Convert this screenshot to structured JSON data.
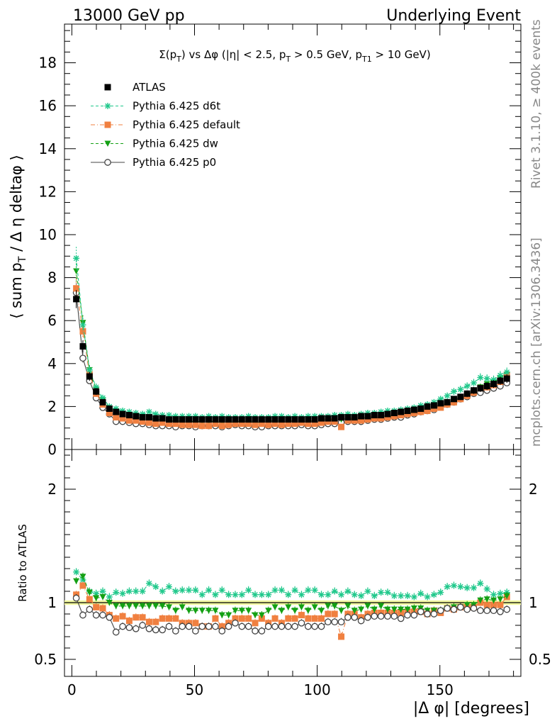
{
  "header": {
    "energy": "13000 GeV pp",
    "analysis": "Underlying Event"
  },
  "side_labels": {
    "rivet": "Rivet 3.1.10, ≥ 400k events",
    "mcplots": "mcplots.cern.ch [arXiv:1306.3436]"
  },
  "colors": {
    "atlas": "#000000",
    "d6t": "#1fc88b",
    "default": "#f08040",
    "dw": "#14a014",
    "p0": "#444444",
    "band": "#f2f8a0"
  },
  "chart_data": [
    {
      "type": "scatter",
      "panel": "main",
      "title": "Σ(p_T) vs Δφ (|η| < 2.5, p_T > 0.5 GeV, p_T1 > 10 GeV)",
      "ylabel": "⟨ sum p_T / Δ η deltaφ ⟩",
      "xlabel": "",
      "xlim": [
        -3,
        183
      ],
      "ylim": [
        0,
        19.8
      ],
      "y_ticks": [
        0,
        2,
        4,
        6,
        8,
        10,
        12,
        14,
        16,
        18
      ],
      "x": [
        1.8,
        4.5,
        7.2,
        9.9,
        12.6,
        15.3,
        18.0,
        20.7,
        23.4,
        26.1,
        28.8,
        31.5,
        34.2,
        36.9,
        39.6,
        42.3,
        45.0,
        47.7,
        50.4,
        53.1,
        55.8,
        58.5,
        61.2,
        63.9,
        66.6,
        69.3,
        72.0,
        74.7,
        77.4,
        80.1,
        82.8,
        85.5,
        88.2,
        90.9,
        93.6,
        96.3,
        99.0,
        101.7,
        104.4,
        107.1,
        109.8,
        112.5,
        115.2,
        117.9,
        120.6,
        123.3,
        126.0,
        128.7,
        131.4,
        134.1,
        136.8,
        139.5,
        142.2,
        144.9,
        147.6,
        150.3,
        153.0,
        155.7,
        158.4,
        161.1,
        163.8,
        166.5,
        169.2,
        171.9,
        174.6,
        177.3
      ],
      "legend_position": "top-left",
      "series": [
        {
          "name": "ATLAS",
          "key": "atlas",
          "marker": "square",
          "line": "none",
          "values": [
            7.0,
            4.8,
            3.4,
            2.7,
            2.2,
            1.9,
            1.75,
            1.65,
            1.6,
            1.55,
            1.5,
            1.5,
            1.45,
            1.45,
            1.4,
            1.4,
            1.4,
            1.4,
            1.4,
            1.4,
            1.4,
            1.4,
            1.4,
            1.4,
            1.4,
            1.4,
            1.4,
            1.4,
            1.4,
            1.4,
            1.4,
            1.4,
            1.4,
            1.4,
            1.4,
            1.4,
            1.4,
            1.45,
            1.45,
            1.45,
            1.5,
            1.5,
            1.5,
            1.55,
            1.55,
            1.6,
            1.6,
            1.65,
            1.7,
            1.75,
            1.8,
            1.85,
            1.9,
            2.0,
            2.05,
            2.15,
            2.2,
            2.35,
            2.45,
            2.6,
            2.75,
            2.85,
            2.95,
            3.05,
            3.2,
            3.3
          ]
        },
        {
          "name": "Pythia 6.425 d6t",
          "key": "d6t",
          "marker": "star",
          "line": "dashed",
          "values": [
            8.9,
            5.8,
            3.7,
            2.9,
            2.4,
            2.0,
            1.9,
            1.8,
            1.75,
            1.7,
            1.65,
            1.75,
            1.65,
            1.6,
            1.6,
            1.55,
            1.55,
            1.55,
            1.55,
            1.5,
            1.55,
            1.5,
            1.55,
            1.5,
            1.5,
            1.5,
            1.55,
            1.5,
            1.5,
            1.5,
            1.55,
            1.55,
            1.5,
            1.55,
            1.5,
            1.55,
            1.55,
            1.55,
            1.55,
            1.6,
            1.6,
            1.65,
            1.6,
            1.65,
            1.7,
            1.7,
            1.75,
            1.8,
            1.8,
            1.85,
            1.9,
            1.95,
            2.05,
            2.1,
            2.2,
            2.35,
            2.5,
            2.7,
            2.8,
            2.95,
            3.1,
            3.35,
            3.3,
            3.25,
            3.45,
            3.6
          ]
        },
        {
          "name": "Pythia 6.425 default",
          "key": "default",
          "marker": "square",
          "line": "dashdot",
          "values": [
            7.5,
            5.5,
            3.5,
            2.6,
            2.1,
            1.7,
            1.5,
            1.45,
            1.35,
            1.35,
            1.3,
            1.25,
            1.2,
            1.25,
            1.2,
            1.2,
            1.15,
            1.15,
            1.15,
            1.1,
            1.1,
            1.2,
            1.1,
            1.15,
            1.2,
            1.2,
            1.2,
            1.15,
            1.2,
            1.15,
            1.2,
            1.15,
            1.2,
            1.2,
            1.25,
            1.2,
            1.2,
            1.25,
            1.3,
            1.3,
            1.05,
            1.35,
            1.35,
            1.35,
            1.4,
            1.45,
            1.45,
            1.5,
            1.55,
            1.6,
            1.65,
            1.7,
            1.75,
            1.8,
            1.9,
            1.95,
            2.1,
            2.2,
            2.35,
            2.5,
            2.65,
            2.85,
            2.9,
            3.0,
            3.15,
            3.45
          ]
        },
        {
          "name": "Pythia 6.425 dw",
          "key": "dw",
          "marker": "triangle-down",
          "line": "dashed",
          "values": [
            8.3,
            5.9,
            3.7,
            2.8,
            2.3,
            1.9,
            1.7,
            1.6,
            1.55,
            1.5,
            1.45,
            1.45,
            1.4,
            1.4,
            1.35,
            1.3,
            1.35,
            1.3,
            1.3,
            1.3,
            1.3,
            1.3,
            1.25,
            1.25,
            1.3,
            1.3,
            1.3,
            1.25,
            1.25,
            1.3,
            1.35,
            1.3,
            1.35,
            1.3,
            1.35,
            1.3,
            1.35,
            1.35,
            1.4,
            1.4,
            1.4,
            1.45,
            1.4,
            1.45,
            1.5,
            1.5,
            1.55,
            1.55,
            1.6,
            1.65,
            1.7,
            1.75,
            1.8,
            1.85,
            1.9,
            2.0,
            2.1,
            2.25,
            2.35,
            2.55,
            2.7,
            2.9,
            3.05,
            3.1,
            3.3,
            3.5
          ]
        },
        {
          "name": "Pythia 6.425 p0",
          "key": "p0",
          "marker": "circle-open",
          "line": "solid",
          "values": [
            7.3,
            4.25,
            3.2,
            2.4,
            1.95,
            1.65,
            1.3,
            1.3,
            1.25,
            1.2,
            1.2,
            1.15,
            1.1,
            1.1,
            1.1,
            1.05,
            1.1,
            1.1,
            1.05,
            1.1,
            1.1,
            1.1,
            1.05,
            1.1,
            1.15,
            1.1,
            1.1,
            1.05,
            1.05,
            1.1,
            1.1,
            1.1,
            1.1,
            1.1,
            1.15,
            1.1,
            1.1,
            1.15,
            1.2,
            1.2,
            1.25,
            1.3,
            1.3,
            1.3,
            1.35,
            1.4,
            1.4,
            1.45,
            1.5,
            1.5,
            1.6,
            1.65,
            1.75,
            1.8,
            1.85,
            2.0,
            2.1,
            2.2,
            2.35,
            2.45,
            2.6,
            2.65,
            2.75,
            2.85,
            2.95,
            3.1
          ]
        }
      ]
    },
    {
      "type": "scatter",
      "panel": "ratio",
      "ylabel": "Ratio to ATLAS",
      "xlabel": "|Δ φ| [degrees]",
      "xlim": [
        -3,
        183
      ],
      "ylim": [
        0.35,
        2.35
      ],
      "y_ticks": [
        0.5,
        1,
        2
      ],
      "x_ticks": [
        0,
        50,
        100,
        150
      ],
      "reference": 1,
      "series": [
        {
          "name": "Pythia 6.425 d6t",
          "key": "d6t",
          "values": [
            1.27,
            1.2,
            1.1,
            1.08,
            1.1,
            1.05,
            1.09,
            1.08,
            1.1,
            1.1,
            1.1,
            1.17,
            1.14,
            1.1,
            1.14,
            1.1,
            1.11,
            1.11,
            1.11,
            1.07,
            1.11,
            1.07,
            1.11,
            1.07,
            1.07,
            1.07,
            1.11,
            1.07,
            1.07,
            1.07,
            1.11,
            1.11,
            1.07,
            1.11,
            1.07,
            1.11,
            1.11,
            1.07,
            1.07,
            1.1,
            1.07,
            1.1,
            1.07,
            1.06,
            1.1,
            1.06,
            1.09,
            1.09,
            1.06,
            1.06,
            1.06,
            1.05,
            1.08,
            1.05,
            1.07,
            1.09,
            1.14,
            1.15,
            1.14,
            1.13,
            1.13,
            1.17,
            1.12,
            1.07,
            1.08,
            1.09
          ]
        },
        {
          "name": "Pythia 6.425 default",
          "key": "default",
          "values": [
            1.07,
            1.15,
            1.03,
            0.96,
            0.95,
            0.89,
            0.86,
            0.88,
            0.84,
            0.87,
            0.87,
            0.83,
            0.83,
            0.86,
            0.86,
            0.86,
            0.82,
            0.82,
            0.82,
            0.79,
            0.79,
            0.86,
            0.79,
            0.82,
            0.86,
            0.86,
            0.86,
            0.82,
            0.86,
            0.82,
            0.86,
            0.82,
            0.86,
            0.86,
            0.89,
            0.86,
            0.86,
            0.86,
            0.9,
            0.9,
            0.7,
            0.9,
            0.9,
            0.87,
            0.9,
            0.91,
            0.91,
            0.91,
            0.91,
            0.91,
            0.92,
            0.92,
            0.92,
            0.9,
            0.93,
            0.91,
            0.95,
            0.94,
            0.96,
            0.96,
            0.96,
            1.0,
            0.98,
            0.98,
            0.98,
            1.05
          ]
        },
        {
          "name": "Pythia 6.425 dw",
          "key": "dw",
          "values": [
            1.19,
            1.23,
            1.09,
            1.04,
            1.05,
            1.0,
            0.97,
            0.97,
            0.97,
            0.97,
            0.97,
            0.97,
            0.97,
            0.97,
            0.96,
            0.93,
            0.96,
            0.93,
            0.93,
            0.93,
            0.93,
            0.93,
            0.89,
            0.89,
            0.93,
            0.93,
            0.93,
            0.89,
            0.89,
            0.93,
            0.96,
            0.93,
            0.96,
            0.93,
            0.96,
            0.93,
            0.96,
            0.93,
            0.97,
            0.97,
            0.93,
            0.97,
            0.93,
            0.94,
            0.97,
            0.94,
            0.97,
            0.94,
            0.94,
            0.94,
            0.94,
            0.95,
            0.95,
            0.93,
            0.93,
            0.93,
            0.95,
            0.96,
            0.96,
            0.98,
            0.98,
            1.02,
            1.03,
            1.02,
            1.03,
            1.06
          ]
        },
        {
          "name": "Pythia 6.425 p0",
          "key": "p0",
          "values": [
            1.04,
            0.89,
            0.94,
            0.89,
            0.89,
            0.87,
            0.74,
            0.79,
            0.78,
            0.77,
            0.8,
            0.77,
            0.76,
            0.76,
            0.79,
            0.75,
            0.79,
            0.79,
            0.75,
            0.79,
            0.79,
            0.79,
            0.75,
            0.79,
            0.82,
            0.79,
            0.79,
            0.75,
            0.75,
            0.79,
            0.79,
            0.79,
            0.79,
            0.79,
            0.82,
            0.79,
            0.79,
            0.79,
            0.83,
            0.83,
            0.83,
            0.87,
            0.87,
            0.84,
            0.87,
            0.88,
            0.88,
            0.88,
            0.88,
            0.86,
            0.89,
            0.89,
            0.92,
            0.9,
            0.9,
            0.93,
            0.95,
            0.94,
            0.96,
            0.94,
            0.95,
            0.93,
            0.93,
            0.93,
            0.92,
            0.94
          ]
        }
      ]
    }
  ]
}
